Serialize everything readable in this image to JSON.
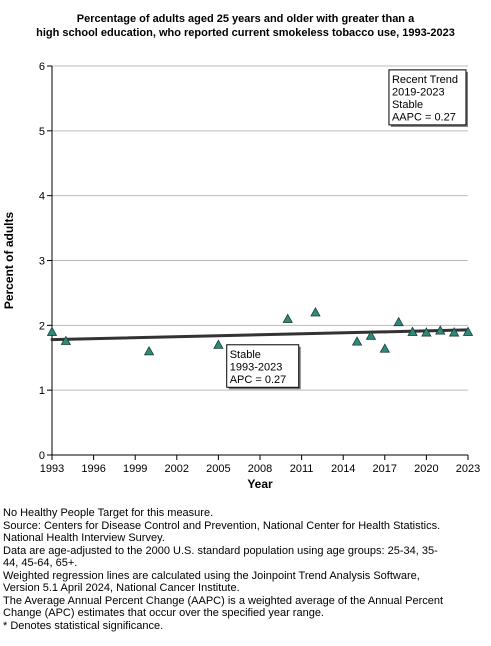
{
  "chart_data": {
    "type": "scatter",
    "title_lines": [
      "Percentage of adults aged 25 years and older with greater than a",
      "high school education, who reported current smokeless tobacco use, 1993-2023"
    ],
    "xlabel": "Year",
    "ylabel": "Percent of adults",
    "xlim": [
      1993,
      2023
    ],
    "ylim": [
      0,
      6
    ],
    "xticks": [
      1993,
      1996,
      1999,
      2002,
      2005,
      2008,
      2011,
      2014,
      2017,
      2020,
      2023
    ],
    "yticks": [
      0,
      1,
      2,
      3,
      4,
      5,
      6
    ],
    "grid": "horizontal",
    "points": [
      {
        "x": 1993,
        "y": 1.9
      },
      {
        "x": 1994,
        "y": 1.76
      },
      {
        "x": 2000,
        "y": 1.6
      },
      {
        "x": 2005,
        "y": 1.7
      },
      {
        "x": 2010,
        "y": 2.1
      },
      {
        "x": 2012,
        "y": 2.2
      },
      {
        "x": 2015,
        "y": 1.75
      },
      {
        "x": 2016,
        "y": 1.84
      },
      {
        "x": 2017,
        "y": 1.64
      },
      {
        "x": 2018,
        "y": 2.05
      },
      {
        "x": 2019,
        "y": 1.9
      },
      {
        "x": 2020,
        "y": 1.89
      },
      {
        "x": 2021,
        "y": 1.92
      },
      {
        "x": 2022,
        "y": 1.89
      },
      {
        "x": 2023,
        "y": 1.9
      }
    ],
    "trend_segments": [
      {
        "from": [
          1993,
          1.78
        ],
        "to": [
          2017,
          1.9
        ]
      },
      {
        "from": [
          2017,
          1.9
        ],
        "to": [
          2023,
          1.93
        ]
      }
    ],
    "annotations": {
      "overall": {
        "lines": [
          "Stable",
          "1993-2023",
          "APC =  0.27"
        ],
        "anchor": [
          2005.6,
          1.7
        ]
      },
      "recent": {
        "lines": [
          "Recent Trend",
          "2019-2023",
          "Stable",
          "AAPC =  0.27"
        ],
        "anchor": [
          2017.3,
          5.94
        ]
      }
    },
    "colors": {
      "marker": "#2E8B7A",
      "trend_line": "#333333",
      "grid": "#bbbbbb"
    }
  },
  "notes": [
    "No Healthy People Target for this measure.",
    "Source: Centers for Disease Control and Prevention, National Center for Health Statistics.",
    "National Health Interview Survey.",
    "Data are age-adjusted to the 2000 U.S. standard population using age groups: 25-34, 35-",
    "44, 45-64, 65+.",
    "Weighted regression lines are calculated using the Joinpoint Trend Analysis Software,",
    "Version 5.1 April 2024, National Cancer Institute.",
    "The Average Annual Percent Change (AAPC) is a weighted average of the Annual Percent",
    "Change (APC) estimates that occur over the specified year range.",
    "* Denotes statistical significance."
  ]
}
